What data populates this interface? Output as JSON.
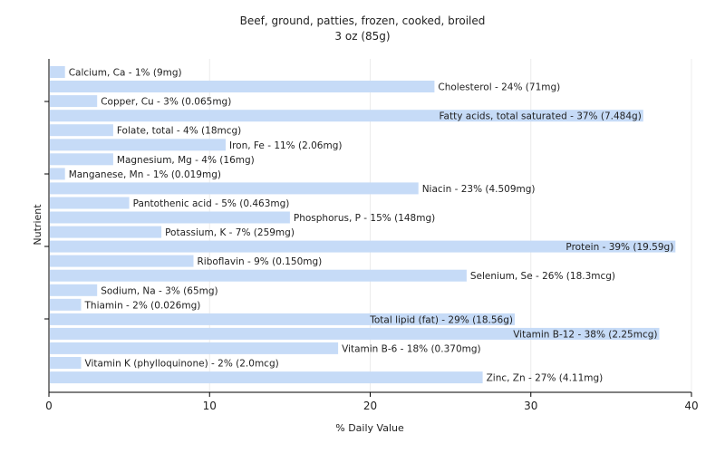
{
  "chart_data": {
    "type": "bar",
    "orientation": "horizontal",
    "title": "Beef, ground, patties, frozen, cooked, broiled",
    "subtitle": "3 oz (85g)",
    "xlabel": "% Daily Value",
    "ylabel": "Nutrient",
    "xlim": [
      0,
      40
    ],
    "xticks": [
      0,
      10,
      20,
      30,
      40
    ],
    "grid": true,
    "bar_color": "#c6dbf7",
    "categories": [
      "Calcium, Ca",
      "Cholesterol",
      "Copper, Cu",
      "Fatty acids, total saturated",
      "Folate, total",
      "Iron, Fe",
      "Magnesium, Mg",
      "Manganese, Mn",
      "Niacin",
      "Pantothenic acid",
      "Phosphorus, P",
      "Potassium, K",
      "Protein",
      "Riboflavin",
      "Selenium, Se",
      "Sodium, Na",
      "Thiamin",
      "Total lipid (fat)",
      "Vitamin B-12",
      "Vitamin B-6",
      "Vitamin K (phylloquinone)",
      "Zinc, Zn"
    ],
    "values": [
      1,
      24,
      3,
      37,
      4,
      11,
      4,
      1,
      23,
      5,
      15,
      7,
      39,
      9,
      26,
      3,
      2,
      29,
      38,
      18,
      2,
      27
    ],
    "labels": [
      "Calcium, Ca - 1% (9mg)",
      "Cholesterol - 24% (71mg)",
      "Copper, Cu - 3% (0.065mg)",
      "Fatty acids, total saturated - 37% (7.484g)",
      "Folate, total - 4% (18mcg)",
      "Iron, Fe - 11% (2.06mg)",
      "Magnesium, Mg - 4% (16mg)",
      "Manganese, Mn - 1% (0.019mg)",
      "Niacin - 23% (4.509mg)",
      "Pantothenic acid - 5% (0.463mg)",
      "Phosphorus, P - 15% (148mg)",
      "Potassium, K - 7% (259mg)",
      "Protein - 39% (19.59g)",
      "Riboflavin - 9% (0.150mg)",
      "Selenium, Se - 26% (18.3mcg)",
      "Sodium, Na - 3% (65mg)",
      "Thiamin - 2% (0.026mg)",
      "Total lipid (fat) - 29% (18.56g)",
      "Vitamin B-12 - 38% (2.25mcg)",
      "Vitamin B-6 - 18% (0.370mg)",
      "Vitamin K (phylloquinone) - 2% (2.0mcg)",
      "Zinc, Zn - 27% (4.11mg)"
    ]
  }
}
